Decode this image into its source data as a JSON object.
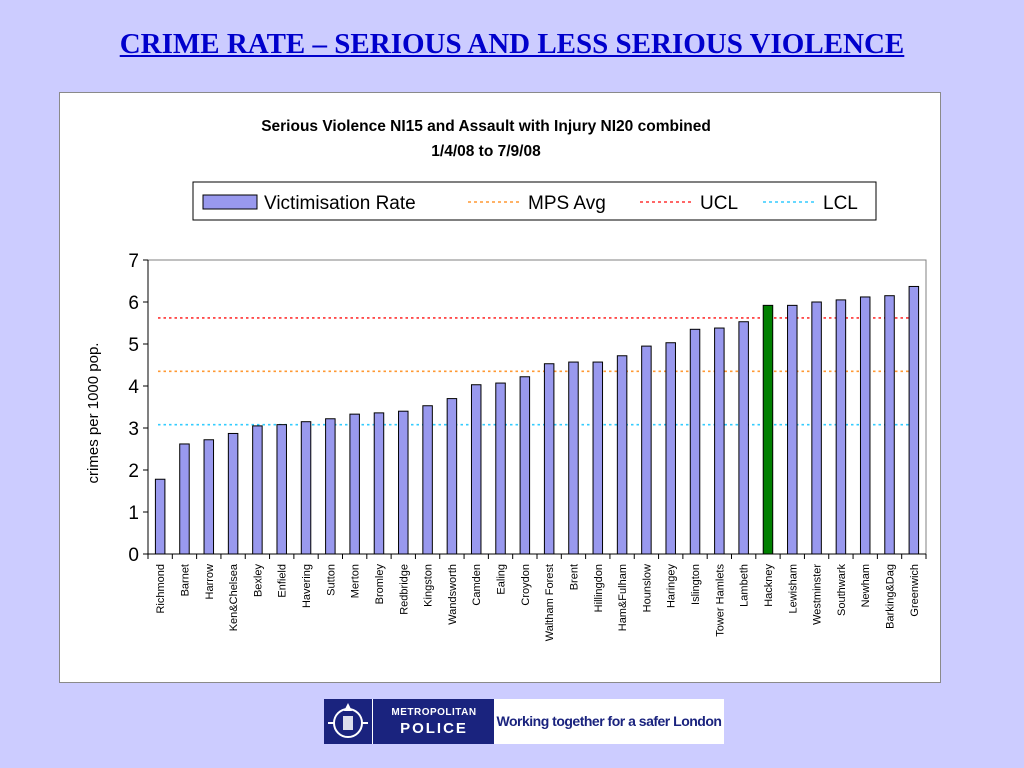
{
  "slide": {
    "title": "CRIME RATE – SERIOUS AND LESS SERIOUS VIOLENCE"
  },
  "chart_data": {
    "type": "bar",
    "title": "Serious Violence NI15 and Assault with Injury NI20 combined",
    "subtitle": "1/4/08 to 7/9/08",
    "xlabel": "",
    "ylabel": "crimes per 1000 pop.",
    "ylim": [
      0,
      7
    ],
    "yticks": [
      "0",
      "1",
      "2",
      "3",
      "4",
      "5",
      "6",
      "7"
    ],
    "grid": false,
    "legend_position": "top",
    "categories": [
      "Richmond",
      "Barnet",
      "Harrow",
      "Ken&Chelsea",
      "Bexley",
      "Enfield",
      "Havering",
      "Sutton",
      "Merton",
      "Bromley",
      "Redbridge",
      "Kingston",
      "Wandsworth",
      "Camden",
      "Ealing",
      "Croydon",
      "Waltham Forest",
      "Brent",
      "Hillingdon",
      "Ham&Fulham",
      "Hounslow",
      "Haringey",
      "Islington",
      "Tower Hamlets",
      "Lambeth",
      "Hackney",
      "Lewisham",
      "Westminster",
      "Southwark",
      "Newham",
      "Barking&Dag",
      "Greenwich"
    ],
    "series": [
      {
        "name": "Victimisation Rate",
        "color": "#9999ee",
        "highlight_category": "Hackney",
        "highlight_color": "#008000",
        "values": [
          1.78,
          2.62,
          2.72,
          2.87,
          3.05,
          3.08,
          3.15,
          3.22,
          3.33,
          3.36,
          3.4,
          3.53,
          3.7,
          4.03,
          4.07,
          4.22,
          4.53,
          4.57,
          4.57,
          4.72,
          4.95,
          5.03,
          5.35,
          5.38,
          5.53,
          5.92,
          5.92,
          6.0,
          6.05,
          6.12,
          6.15,
          6.37
        ]
      }
    ],
    "reference_lines": [
      {
        "name": "MPS Avg",
        "value": 4.35,
        "color": "#ff9933"
      },
      {
        "name": "UCL",
        "value": 5.62,
        "color": "#ff3333"
      },
      {
        "name": "LCL",
        "value": 3.08,
        "color": "#33ccff"
      }
    ]
  },
  "logo": {
    "line1": "METROPOLITAN",
    "line2": "POLICE",
    "slogan": "Working together for a safer London"
  },
  "icons": {
    "crest": "police-crest-icon"
  }
}
